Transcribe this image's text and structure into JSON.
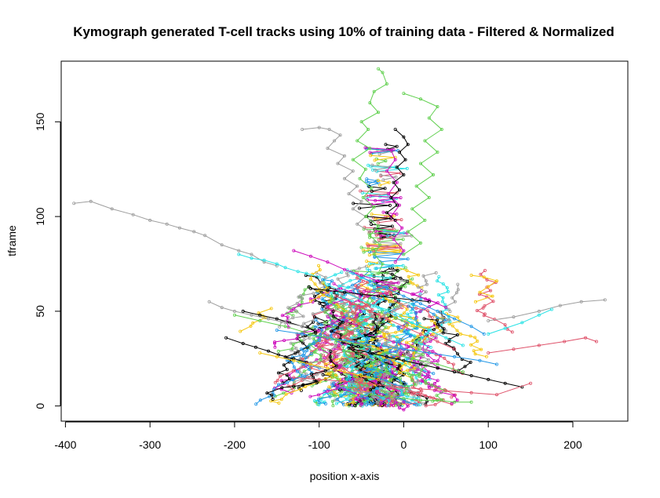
{
  "chart_data": {
    "type": "line",
    "title": "Kymograph generated T-cell tracks using 10% of training data - Filtered & Normalized",
    "xlabel": "position x-axis",
    "ylabel": "tframe",
    "xlim": [
      -405,
      265
    ],
    "ylim": [
      -8,
      182
    ],
    "xticks": [
      -400,
      -300,
      -200,
      -100,
      0,
      100,
      200
    ],
    "yticks": [
      0,
      50,
      100,
      150
    ],
    "grid": false,
    "legend": "none",
    "series_colors": [
      "#000000",
      "#DF536B",
      "#61D04F",
      "#2297E6",
      "#28E2E5",
      "#CD0BBC",
      "#F5C710",
      "#9E9E9E"
    ],
    "series": [
      {
        "color": "#9E9E9E",
        "x": [
          -390,
          -370,
          -345,
          -320,
          -300,
          -280,
          -265,
          -248,
          -235,
          -215,
          -195,
          -180,
          -165,
          -150
        ],
        "y": [
          107,
          108,
          104,
          101,
          98,
          96,
          94,
          92,
          90,
          85,
          82,
          80,
          76,
          74
        ]
      },
      {
        "color": "#9E9E9E",
        "x": [
          -120,
          -100,
          -88,
          -75,
          -82,
          -90,
          -70,
          -78,
          -60,
          -70,
          -55,
          -65,
          -50,
          -60,
          -45,
          -55,
          -40
        ],
        "y": [
          146,
          147,
          146,
          143,
          140,
          136,
          132,
          128,
          124,
          120,
          116,
          112,
          108,
          104,
          100,
          96,
          92
        ]
      },
      {
        "color": "#61D04F",
        "x": [
          -30,
          -25,
          -20,
          -35,
          -40,
          -30,
          -50,
          -42,
          -55,
          -40,
          -60,
          -45,
          -52,
          -38,
          -48,
          -35,
          -45,
          -30,
          -40,
          -28,
          -35,
          -25,
          -30
        ],
        "y": [
          178,
          176,
          170,
          166,
          160,
          155,
          150,
          146,
          140,
          136,
          130,
          125,
          120,
          115,
          110,
          105,
          100,
          95,
          90,
          85,
          80,
          75,
          70
        ]
      },
      {
        "color": "#61D04F",
        "x": [
          0,
          20,
          40,
          30,
          45,
          25,
          40,
          20,
          35,
          15,
          30,
          10,
          25,
          5,
          20,
          0
        ],
        "y": [
          165,
          162,
          158,
          152,
          146,
          140,
          134,
          128,
          122,
          116,
          110,
          104,
          98,
          92,
          86,
          80
        ]
      },
      {
        "color": "#CD0BBC",
        "x": [
          -15,
          -10,
          -20,
          -8,
          -18,
          -5,
          -15,
          -2,
          -12,
          0,
          -10
        ],
        "y": [
          135,
          130,
          124,
          118,
          112,
          106,
          100,
          94,
          88,
          82,
          76
        ]
      },
      {
        "color": "#000000",
        "x": [
          -10,
          0,
          5,
          -5,
          2,
          -8,
          0,
          -12,
          -5,
          -15,
          -8,
          -20,
          -10
        ],
        "y": [
          146,
          142,
          138,
          134,
          130,
          126,
          122,
          118,
          114,
          110,
          106,
          102,
          98
        ]
      },
      {
        "color": "#28E2E5",
        "x": [
          -195,
          -180,
          -165,
          -150,
          -140,
          -125,
          -115,
          -100
        ],
        "y": [
          80,
          78,
          77,
          75,
          73,
          71,
          70,
          68
        ]
      },
      {
        "color": "#F5C710",
        "x": [
          80,
          95,
          110,
          100,
          90,
          105,
          85
        ],
        "y": [
          69,
          68,
          66,
          63,
          60,
          58,
          55
        ]
      },
      {
        "color": "#9E9E9E",
        "x": [
          100,
          130,
          160,
          185,
          210,
          238
        ],
        "y": [
          45,
          47,
          50,
          53,
          55,
          56
        ]
      },
      {
        "color": "#28E2E5",
        "x": [
          100,
          120,
          140,
          160,
          175
        ],
        "y": [
          38,
          41,
          44,
          48,
          51
        ]
      },
      {
        "color": "#DF536B",
        "x": [
          100,
          130,
          160,
          190,
          215,
          228
        ],
        "y": [
          28,
          30,
          32,
          34,
          36,
          34
        ]
      },
      {
        "color": "#000000",
        "x": [
          -210,
          -190,
          -175,
          -160,
          -148,
          -130,
          -115
        ],
        "y": [
          36,
          33,
          31,
          29,
          27,
          25,
          23
        ]
      },
      {
        "color": "#000000",
        "x": [
          -190,
          -170,
          -150,
          -135,
          -120,
          -105
        ],
        "y": [
          50,
          48,
          46,
          44,
          42,
          40
        ]
      },
      {
        "color": "#000000",
        "x": [
          -60,
          -40,
          -20,
          0,
          20,
          40,
          60,
          80,
          100,
          120,
          140
        ],
        "y": [
          30,
          28,
          26,
          24,
          22,
          20,
          18,
          16,
          14,
          12,
          10
        ]
      },
      {
        "color": "#DF536B",
        "x": [
          -130,
          -100,
          -70,
          -40,
          -10,
          20,
          50,
          80,
          110,
          150
        ],
        "y": [
          15,
          14,
          13,
          12,
          10,
          9,
          8,
          7,
          6,
          12
        ]
      },
      {
        "color": "#2297E6",
        "x": [
          -150,
          -120,
          -90,
          -60,
          -30,
          0,
          30,
          60,
          90,
          110
        ],
        "y": [
          40,
          38,
          36,
          34,
          32,
          30,
          28,
          26,
          24,
          22
        ]
      },
      {
        "color": "#61D04F",
        "x": [
          -200,
          -170,
          -140,
          -110,
          -80,
          -50,
          -20,
          10,
          40,
          70
        ],
        "y": [
          48,
          45,
          42,
          38,
          35,
          32,
          28,
          25,
          22,
          18
        ]
      },
      {
        "color": "#CD0BBC",
        "x": [
          -130,
          -110,
          -90,
          -70,
          -50,
          -30,
          -10,
          10,
          30,
          50
        ],
        "y": [
          82,
          79,
          76,
          72,
          69,
          66,
          62,
          59,
          56,
          52
        ]
      },
      {
        "color": "#28E2E5",
        "x": [
          -90,
          -70,
          -50,
          -30,
          -10,
          10,
          30,
          50,
          70
        ],
        "y": [
          64,
          60,
          56,
          52,
          48,
          44,
          40,
          36,
          32
        ]
      },
      {
        "color": "#F5C710",
        "x": [
          -170,
          -150,
          -130,
          -110,
          -90,
          -70,
          -50,
          -30
        ],
        "y": [
          28,
          26,
          24,
          22,
          20,
          18,
          16,
          14
        ]
      },
      {
        "color": "#9E9E9E",
        "x": [
          -230,
          -215,
          -200,
          -180,
          -160,
          -140,
          -120
        ],
        "y": [
          55,
          52,
          50,
          48,
          46,
          44,
          42
        ]
      },
      {
        "color": "#000000",
        "x": [
          -110,
          -90,
          -70,
          -50,
          -30,
          -10,
          10,
          30
        ],
        "y": [
          62,
          61,
          60,
          59,
          58,
          57,
          56,
          55
        ]
      },
      {
        "color": "#DF536B",
        "x": [
          -80,
          -60,
          -40,
          -20,
          0,
          20,
          40,
          60
        ],
        "y": [
          58,
          54,
          50,
          46,
          42,
          38,
          34,
          30
        ]
      },
      {
        "color": "#2297E6",
        "x": [
          -60,
          -40,
          -20,
          0,
          20,
          40,
          60,
          80,
          95
        ],
        "y": [
          70,
          66,
          62,
          58,
          54,
          50,
          46,
          42,
          38
        ]
      },
      {
        "color": "#61D04F",
        "x": [
          -40,
          -20,
          0,
          20,
          40,
          60,
          80
        ],
        "y": [
          6,
          5,
          4,
          3,
          3,
          2,
          2
        ]
      },
      {
        "color": "#CD0BBC",
        "x": [
          -10,
          -5,
          0,
          5,
          0
        ],
        "y": [
          2,
          -1,
          -2,
          0,
          2
        ]
      }
    ]
  }
}
